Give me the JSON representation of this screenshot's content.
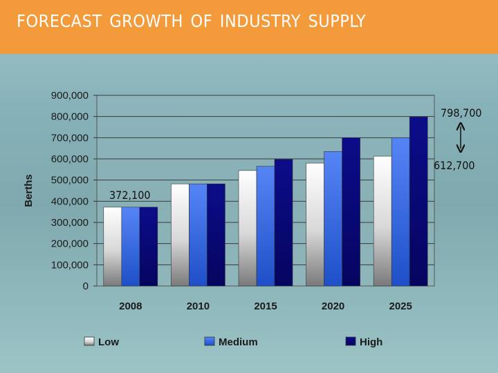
{
  "slide": {
    "title": "FORECAST GROWTH OF INDUSTRY SUPPLY"
  },
  "chart_data": {
    "type": "bar",
    "categories": [
      "2008",
      "2010",
      "2015",
      "2020",
      "2025"
    ],
    "series": [
      {
        "name": "Low",
        "values": [
          372100,
          482000,
          545000,
          580000,
          612700
        ],
        "color": "#dcdcdc"
      },
      {
        "name": "Medium",
        "values": [
          372100,
          482000,
          565000,
          635000,
          700000
        ],
        "color": "#3f6fe8"
      },
      {
        "name": "High",
        "values": [
          372100,
          482000,
          598000,
          700000,
          798700
        ],
        "color": "#0a0a7a"
      }
    ],
    "ylabel": "Berths",
    "ylim": [
      0,
      900000
    ],
    "yticks": [
      "0",
      "100,000",
      "200,000",
      "300,000",
      "400,000",
      "500,000",
      "600,000",
      "700,000",
      "800,000",
      "900,000"
    ],
    "grid": true,
    "legend_position": "bottom",
    "annotations": {
      "start": "372,100",
      "top": "798,700",
      "bottom": "612,700"
    }
  }
}
